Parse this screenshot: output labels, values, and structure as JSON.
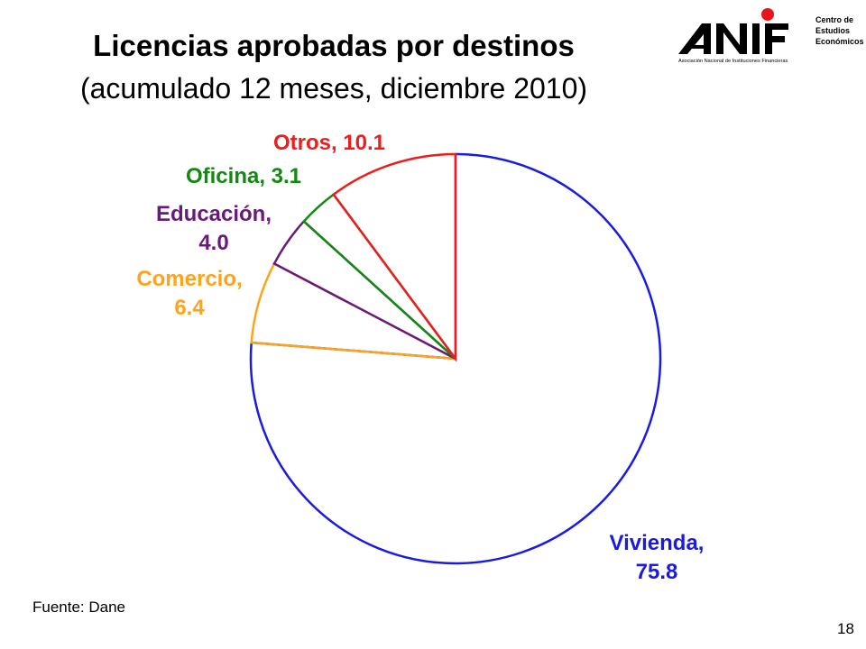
{
  "header": {
    "title": "Licencias aprobadas por destinos",
    "subtitle": "(acumulado 12 meses, diciembre 2010)"
  },
  "logo": {
    "name": "ANIF",
    "tagline": "Asociación Nacional de Instituciones Financieras",
    "unit_line1": "Centro de",
    "unit_line2": "Estudios",
    "unit_line3": "Económicos",
    "dot_color": "#e8141b"
  },
  "chart_data": {
    "type": "pie",
    "title": "Licencias aprobadas por destinos",
    "subtitle": "(acumulado 12 meses, diciembre 2010)",
    "slices": [
      {
        "label": "Vivienda",
        "value": 75.8,
        "label_line1": "Vivienda,",
        "label_line2": "75.8",
        "color": "#1a1ae6"
      },
      {
        "label": "Comercio",
        "value": 6.4,
        "label_line1": "Comercio,",
        "label_line2": "6.4",
        "color": "#ffa31a"
      },
      {
        "label": "Educación",
        "value": 4.0,
        "label_line1": "Educación,",
        "label_line2": "4.0",
        "color": "#6a1a7a"
      },
      {
        "label": "Oficina",
        "value": 3.1,
        "label_line1": "Oficina, 3.1",
        "label_line2": "",
        "color": "#128a12"
      },
      {
        "label": "Otros",
        "value": 10.1,
        "label_line1": "Otros, 10.1",
        "label_line2": "",
        "color": "#ee1c1c"
      }
    ],
    "start": "12 o'clock",
    "direction": "clockwise",
    "fill": "none (outline only)"
  },
  "footer": {
    "source": "Fuente: Dane",
    "page_number": "18"
  }
}
